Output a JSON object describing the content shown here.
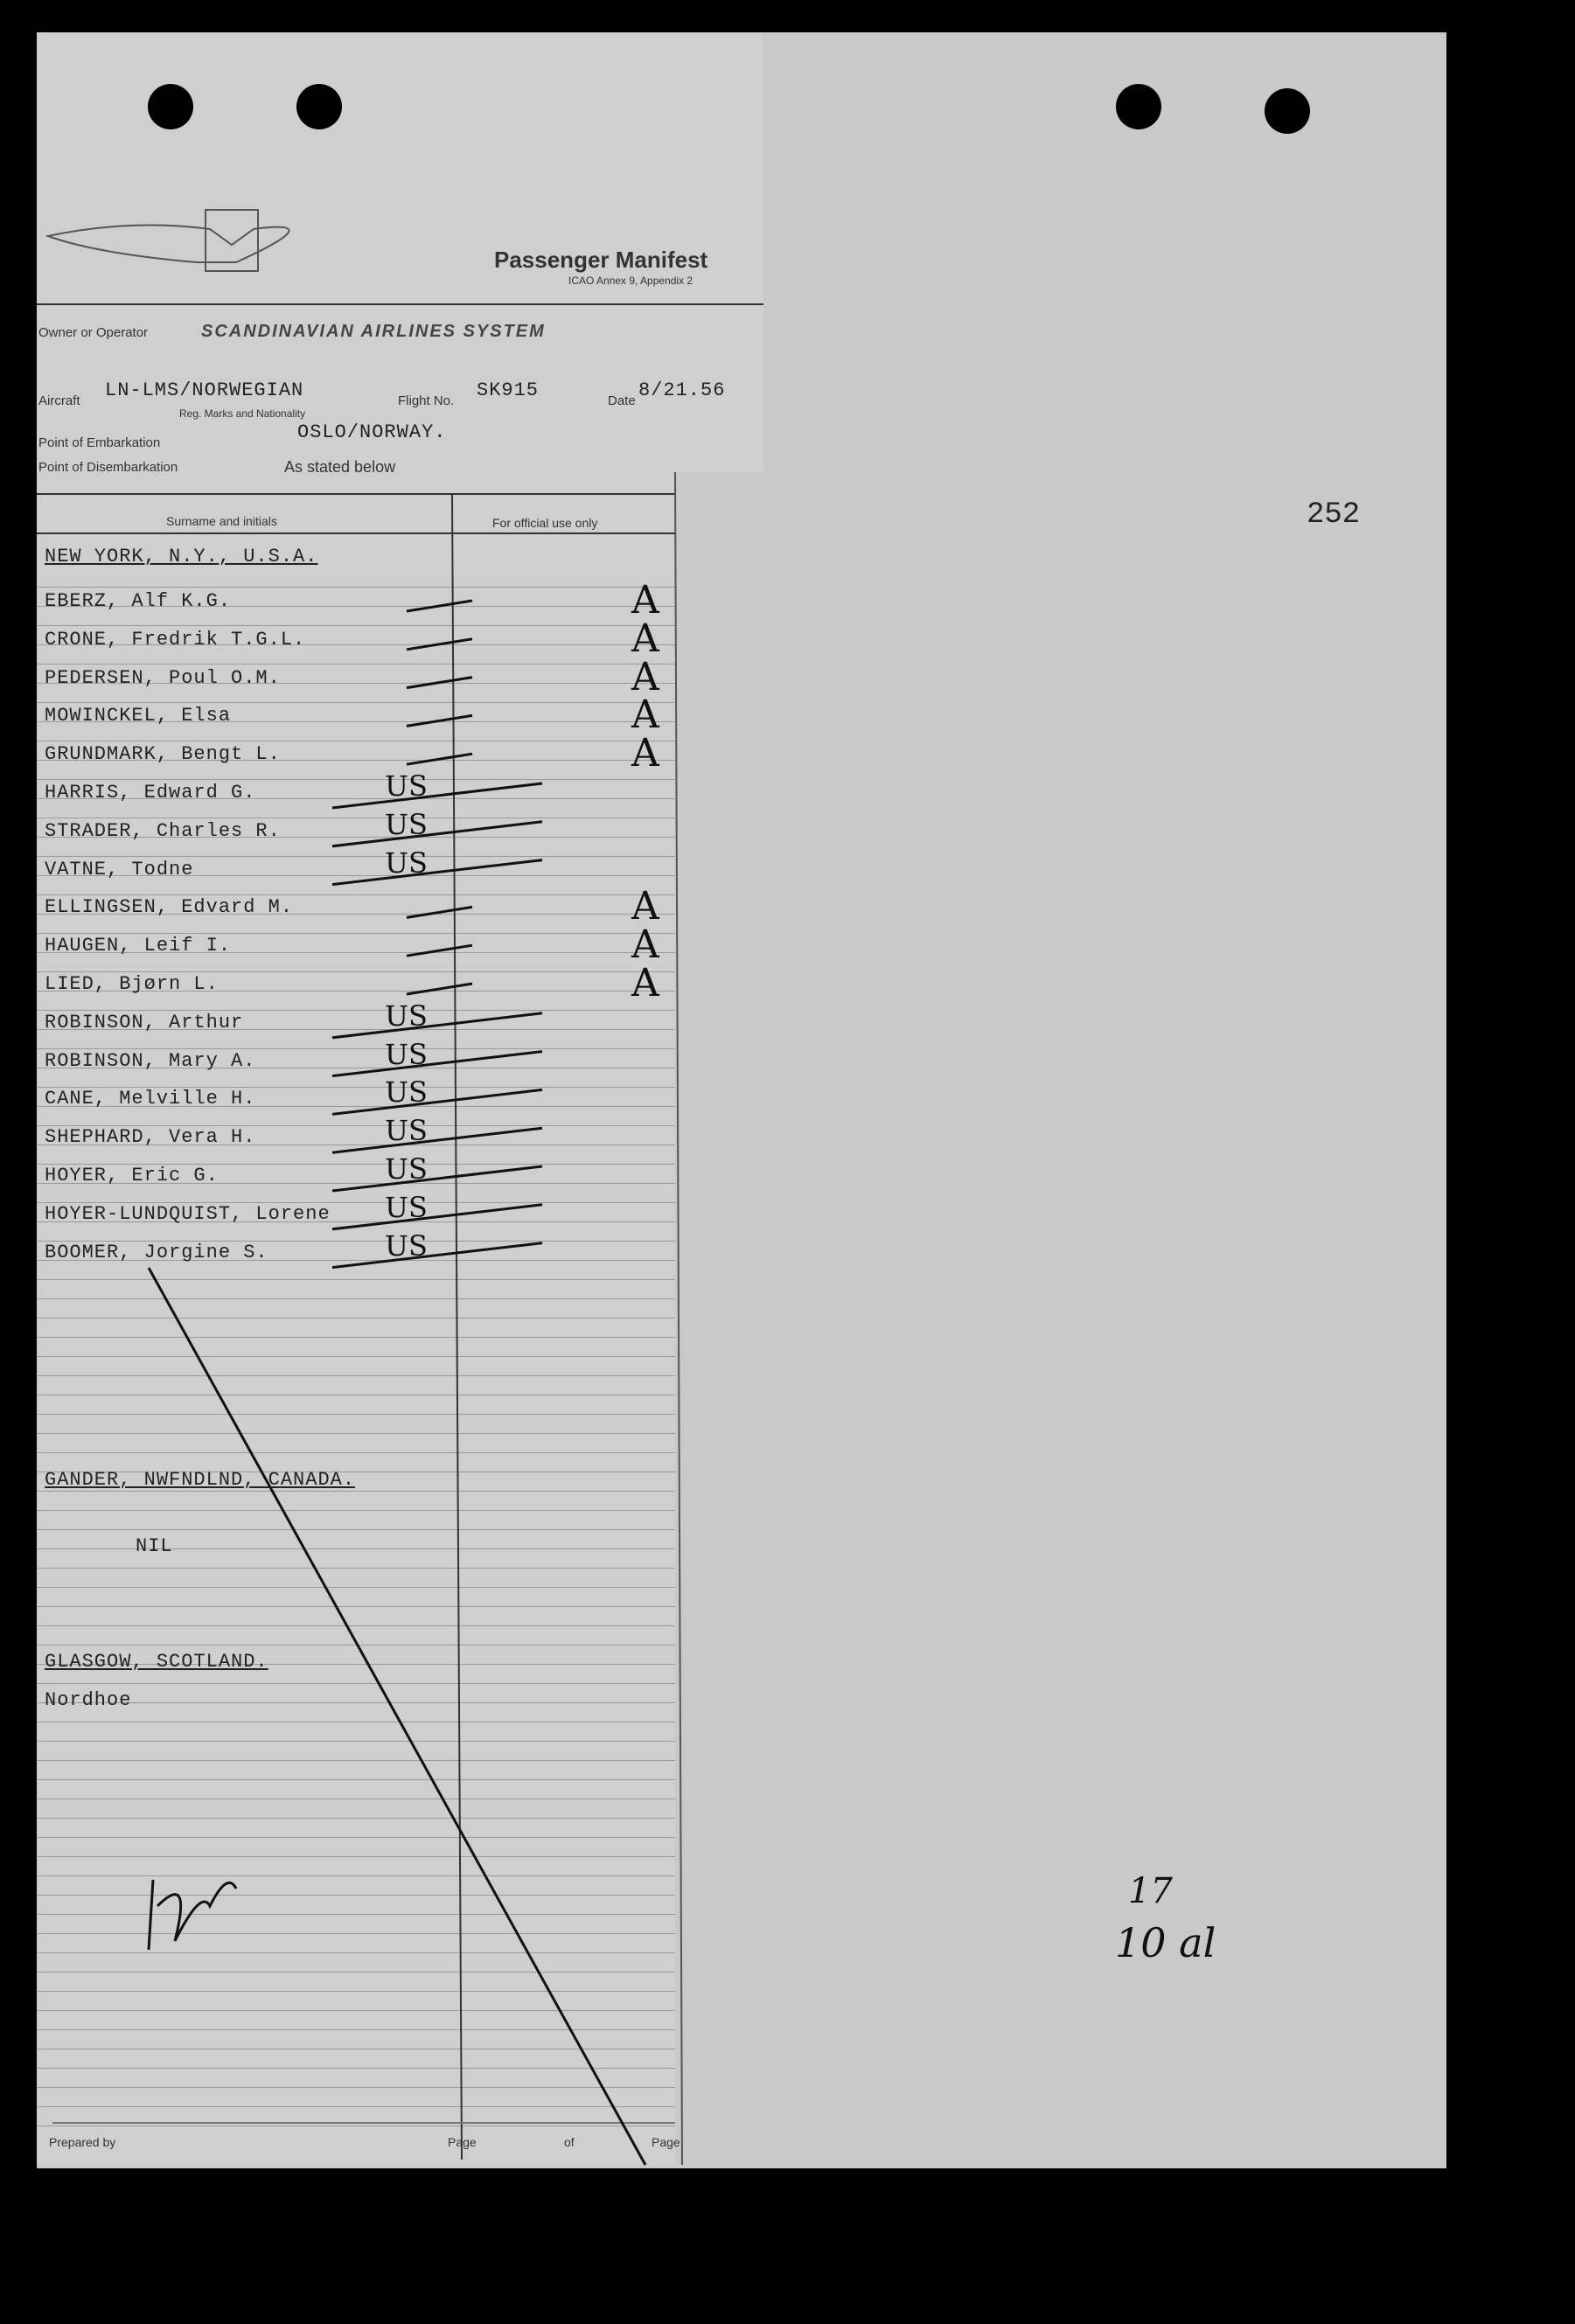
{
  "header": {
    "title": "Passenger Manifest",
    "subtitle": "ICAO Annex 9, Appendix 2",
    "page_number": "252"
  },
  "fields": {
    "owner": {
      "label": "Owner or Operator",
      "value": "SCANDINAVIAN AIRLINES SYSTEM"
    },
    "aircraft": {
      "label": "Aircraft",
      "value": "LN-LMS/NORWEGIAN",
      "sublabel": "Reg. Marks and Nationality"
    },
    "flight": {
      "label": "Flight No.",
      "value": "SK915"
    },
    "date": {
      "label": "Date",
      "value": "8/21.56"
    },
    "embarkation": {
      "label": "Point of Embarkation",
      "value": "OSLO/NORWAY."
    },
    "disembarkation": {
      "label": "Point of Disembarkation",
      "value": "As stated below"
    }
  },
  "table": {
    "columns": [
      "Surname and initials",
      "For official use only"
    ],
    "sections": [
      {
        "destination": "NEW YORK, N.Y., U.S.A.",
        "passengers": [
          {
            "name": "EBERZ, Alf K.G.",
            "mark": "A"
          },
          {
            "name": "CRONE, Fredrik T.G.L.",
            "mark": "A"
          },
          {
            "name": "PEDERSEN, Poul O.M.",
            "mark": "A"
          },
          {
            "name": "MOWINCKEL, Elsa",
            "mark": "A"
          },
          {
            "name": "GRUNDMARK, Bengt L.",
            "mark": "A"
          },
          {
            "name": "HARRIS, Edward G.",
            "mark": "US"
          },
          {
            "name": "STRADER, Charles R.",
            "mark": "US"
          },
          {
            "name": "VATNE, Todne",
            "mark": "US"
          },
          {
            "name": "ELLINGSEN, Edvard M.",
            "mark": "A"
          },
          {
            "name": "HAUGEN, Leif I.",
            "mark": "A"
          },
          {
            "name": "LIED, Bjørn L.",
            "mark": "A"
          },
          {
            "name": "ROBINSON, Arthur",
            "mark": "US"
          },
          {
            "name": "ROBINSON, Mary A.",
            "mark": "US"
          },
          {
            "name": "CANE, Melville H.",
            "mark": "US"
          },
          {
            "name": "SHEPHARD, Vera H.",
            "mark": "US"
          },
          {
            "name": "HOYER, Eric G.",
            "mark": "US"
          },
          {
            "name": "HOYER-LUNDQUIST, Lorene",
            "mark": "US"
          },
          {
            "name": "BOOMER, Jorgine S.",
            "mark": "US"
          }
        ]
      },
      {
        "destination": "GANDER, NWFNDLND, CANADA.",
        "passengers": [
          {
            "name": "NIL"
          }
        ]
      },
      {
        "destination": "GLASGOW, SCOTLAND.",
        "passengers": [
          {
            "name": "Nordhoe"
          }
        ]
      }
    ]
  },
  "footer": {
    "labels": [
      "Prepared by",
      "Page",
      "of",
      "Page"
    ]
  },
  "annotations": {
    "count": "17",
    "note": "10 al"
  }
}
